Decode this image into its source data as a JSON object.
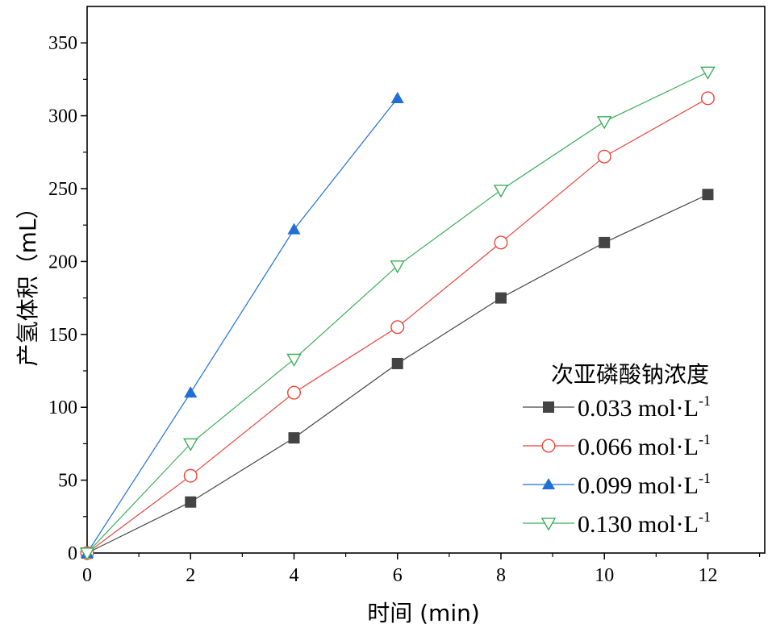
{
  "chart_data": {
    "type": "line",
    "title": "",
    "xlabel": "时间 (min)",
    "ylabel": "产氢体积（mL）",
    "xlim": [
      0,
      13.1
    ],
    "ylim": [
      0,
      375
    ],
    "xticks": [
      0,
      2,
      4,
      6,
      8,
      10,
      12
    ],
    "yticks": [
      0,
      50,
      100,
      150,
      200,
      250,
      300,
      350
    ],
    "grid": false,
    "legend": {
      "title": "次亚磷酸钠浓度",
      "position": "bottom-right"
    },
    "series": [
      {
        "name": "0.033 mol·L",
        "superscript": "-1",
        "color": "#444444",
        "marker": "filled-square",
        "x": [
          0,
          2,
          4,
          6,
          8,
          10,
          12
        ],
        "y": [
          0,
          35,
          79,
          130,
          175,
          213,
          246
        ]
      },
      {
        "name": "0.066 mol·L",
        "superscript": "-1",
        "color": "#e8453c",
        "marker": "open-circle",
        "x": [
          0,
          2,
          4,
          6,
          8,
          10,
          12
        ],
        "y": [
          0,
          53,
          110,
          155,
          213,
          272,
          312
        ]
      },
      {
        "name": "0.099 mol·L",
        "superscript": "-1",
        "color": "#1f6fd6",
        "marker": "filled-triangle-up",
        "x": [
          0,
          2,
          4,
          6
        ],
        "y": [
          0,
          110,
          222,
          312
        ]
      },
      {
        "name": "0.130 mol·L",
        "superscript": "-1",
        "color": "#3cad5a",
        "marker": "open-triangle-down",
        "x": [
          0,
          2,
          4,
          6,
          8,
          10,
          12
        ],
        "y": [
          0,
          75,
          133,
          197,
          249,
          296,
          330
        ]
      }
    ]
  }
}
